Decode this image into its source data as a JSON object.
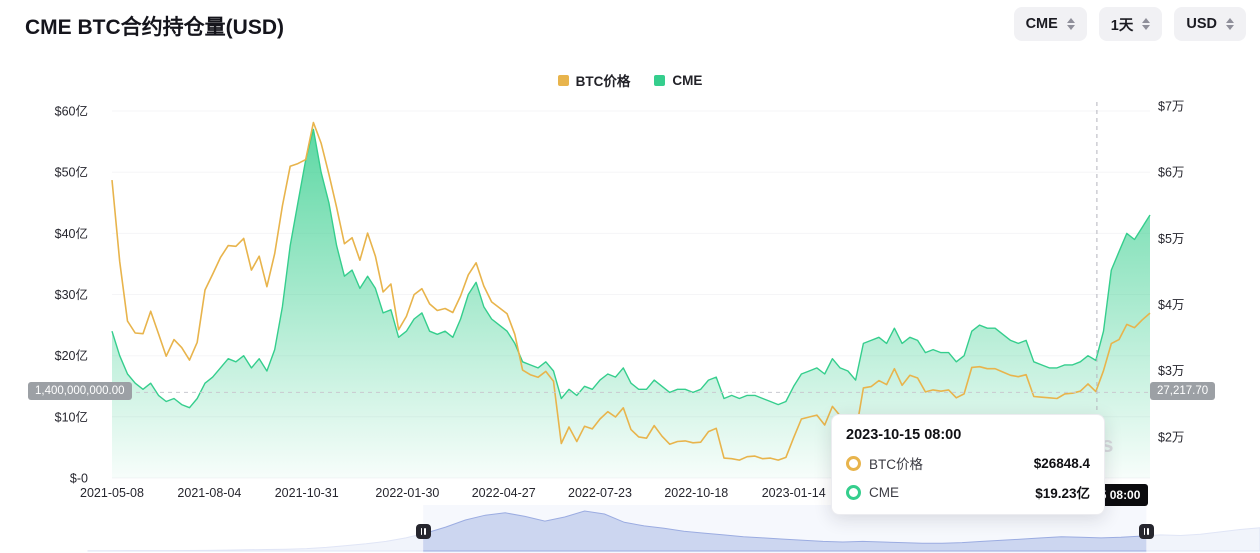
{
  "header": {
    "title": "CME BTC合约持仓量(USD)"
  },
  "controls": {
    "symbol": {
      "value": "CME"
    },
    "interval": {
      "value": "1天"
    },
    "currency": {
      "value": "USD"
    }
  },
  "legend": [
    {
      "label": "BTC价格",
      "color": "#E8B44C"
    },
    {
      "label": "CME",
      "color": "#35CE8D"
    }
  ],
  "crosshair_labels": {
    "left": "1,400,000,000.00",
    "right": "27,217.70",
    "x": "2023-10-15 08:00"
  },
  "tooltip": {
    "title": "2023-10-15 08:00",
    "rows": [
      {
        "label": "BTC价格",
        "value": "$26848.4",
        "color": "#E8B44C"
      },
      {
        "label": "CME",
        "value": "$19.23亿",
        "color": "#35CE8D"
      }
    ]
  },
  "watermark": "coinglass",
  "chart_data": {
    "type": "line",
    "title": "CME BTC合约持仓量(USD)",
    "x_axis": {
      "span": 134,
      "ticks": [
        {
          "pos": 0,
          "label": "2021-05-08"
        },
        {
          "pos": 12.57,
          "label": "2021-08-04"
        },
        {
          "pos": 25.14,
          "label": "2021-10-31"
        },
        {
          "pos": 38.14,
          "label": "2022-01-30"
        },
        {
          "pos": 50.57,
          "label": "2022-04-27"
        },
        {
          "pos": 63,
          "label": "2022-07-23"
        },
        {
          "pos": 75.43,
          "label": "2022-10-18"
        },
        {
          "pos": 88,
          "label": "2023-01-14"
        }
      ]
    },
    "y_left": {
      "unit": "亿USD",
      "min": 0,
      "max": 61.15,
      "ticks": [
        {
          "v": 0,
          "label": "$-0"
        },
        {
          "v": 10,
          "label": "$10亿"
        },
        {
          "v": 20,
          "label": "$20亿"
        },
        {
          "v": 30,
          "label": "$30亿"
        },
        {
          "v": 40,
          "label": "$40亿"
        },
        {
          "v": 50,
          "label": "$50亿"
        },
        {
          "v": 60,
          "label": "$60亿"
        }
      ]
    },
    "y_right": {
      "unit": "USD",
      "min": 13788,
      "max": 70303,
      "ticks": [
        {
          "v": 20000,
          "label": "$2万"
        },
        {
          "v": 30000,
          "label": "$3万"
        },
        {
          "v": 40000,
          "label": "$4万"
        },
        {
          "v": 50000,
          "label": "$5万"
        },
        {
          "v": 60000,
          "label": "$6万"
        },
        {
          "v": 70000,
          "label": "$7万"
        }
      ]
    },
    "crosshair": {
      "index": 127.14,
      "left_value": 14,
      "right_value": 27217.7,
      "date": "2023-10-15 08:00"
    },
    "series": [
      {
        "name": "CME",
        "type": "area",
        "axis": "left",
        "color": "#35CE8D",
        "values": [
          24,
          20,
          17,
          15.5,
          14.5,
          15.5,
          13.5,
          12.5,
          13,
          12,
          11.5,
          13,
          15.5,
          16.5,
          18,
          19.5,
          19,
          20,
          18,
          19.5,
          17.5,
          21,
          28,
          38,
          45,
          52,
          57,
          50,
          45,
          38,
          33,
          34,
          31,
          33,
          31,
          27,
          27.5,
          23,
          24,
          26,
          27,
          24,
          23.5,
          24,
          23,
          26,
          30,
          32,
          28,
          26,
          25,
          24,
          22,
          19,
          18.5,
          18,
          19,
          17.5,
          13,
          14.5,
          13.5,
          15,
          14.5,
          16,
          17,
          16.5,
          18,
          15.5,
          14.5,
          14.5,
          16,
          15,
          14,
          14.5,
          14.5,
          14,
          14.5,
          16,
          16.5,
          13,
          13.5,
          13,
          13.5,
          13.5,
          13,
          12.5,
          12,
          12.5,
          15,
          17,
          17.5,
          18,
          17,
          19.5,
          18,
          17.5,
          16,
          22,
          22.5,
          23,
          22,
          24.5,
          22,
          23,
          22.5,
          20.5,
          21,
          20.5,
          20.5,
          19,
          20,
          24,
          25,
          24.5,
          24.5,
          23.5,
          22.5,
          22,
          22.5,
          19,
          18.5,
          18,
          18,
          18.5,
          18.5,
          19,
          20,
          19.23,
          24,
          34,
          37,
          40,
          39,
          41,
          43
        ]
      },
      {
        "name": "BTC价格",
        "type": "line",
        "axis": "right",
        "color": "#E8B44C",
        "values": [
          58800,
          46500,
          37500,
          35700,
          35600,
          39000,
          35600,
          32200,
          34700,
          33500,
          31600,
          34300,
          42200,
          44600,
          47100,
          48900,
          48800,
          50000,
          45200,
          47300,
          42700,
          47700,
          54900,
          60900,
          61300,
          61900,
          67500,
          64400,
          59700,
          54700,
          49200,
          50100,
          46700,
          50800,
          47300,
          41900,
          43100,
          36200,
          38200,
          41500,
          42400,
          40100,
          39100,
          39400,
          38800,
          41300,
          44500,
          46300,
          42800,
          40400,
          39500,
          38600,
          35500,
          30100,
          29400,
          29000,
          29900,
          28400,
          19000,
          21500,
          19300,
          21600,
          21200,
          22700,
          23800,
          23000,
          24400,
          21100,
          20000,
          19800,
          21700,
          20100,
          18900,
          19300,
          19400,
          19100,
          19200,
          20800,
          21300,
          16800,
          16700,
          16500,
          17000,
          17100,
          16700,
          16800,
          16500,
          16900,
          19900,
          22700,
          23000,
          23300,
          21800,
          24600,
          23200,
          22400,
          20500,
          27400,
          27600,
          28500,
          27900,
          30300,
          27800,
          29300,
          28900,
          26800,
          27100,
          26900,
          27100,
          25900,
          26500,
          30500,
          30600,
          30300,
          30300,
          29800,
          29300,
          29100,
          29400,
          26100,
          26000,
          25900,
          25800,
          26500,
          26600,
          26900,
          28000,
          26850,
          30000,
          34100,
          34700,
          37000,
          36500,
          37700,
          38700
        ]
      }
    ],
    "navigator": {
      "selection": [
        0.286,
        0.903
      ],
      "values": [
        0.5,
        0.5,
        0.6,
        0.6,
        0.7,
        0.8,
        1,
        1.5,
        2,
        2.5,
        3,
        4,
        6,
        9,
        12,
        16,
        22,
        30,
        40,
        52,
        60,
        64,
        58,
        50,
        57,
        67,
        62,
        48,
        42,
        38,
        33,
        30,
        27,
        24,
        22,
        20,
        18,
        16,
        15,
        16,
        15,
        14,
        13,
        13,
        14,
        16,
        18,
        20,
        22,
        24,
        23,
        22,
        23,
        25,
        27,
        26,
        28,
        32,
        36,
        39
      ]
    }
  }
}
